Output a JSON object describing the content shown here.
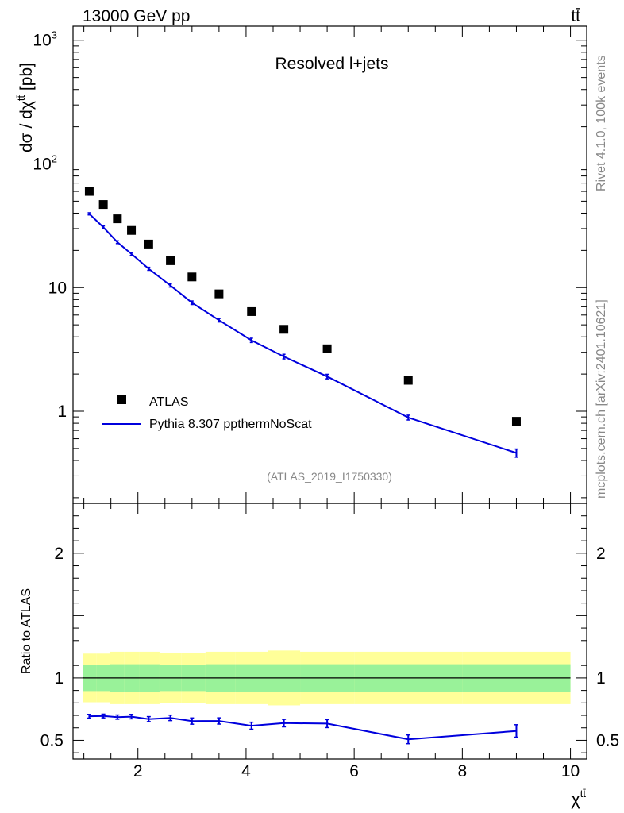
{
  "header": {
    "left": "13000 GeV pp",
    "right": "tt̄"
  },
  "side": {
    "rivet": "Rivet 4.1.0,  100k events",
    "mcplots": "mcplots.cern.ch [arXiv:2401.10621]"
  },
  "chart_data": [
    {
      "type": "scatter",
      "title": "Resolved l+jets",
      "ylabel": "dσ / dχ^tt̄ [pb]",
      "xlabel": "χ^tt̄",
      "yscale": "log",
      "ylim": [
        0.18,
        1300
      ],
      "xlim": [
        0.8,
        10.3
      ],
      "yticks": [
        {
          "v": 1,
          "label": "1"
        },
        {
          "v": 10,
          "label": "10"
        },
        {
          "v": 100,
          "label": "10^2"
        },
        {
          "v": 1000,
          "label": "10^3"
        }
      ],
      "analysis_tag": "(ATLAS_2019_I1750330)",
      "legend": {
        "placement": "lower-left",
        "entries": [
          "ATLAS",
          "Pythia 8.307 ppthermNoScat"
        ]
      },
      "x": [
        1.1,
        1.36,
        1.62,
        1.88,
        2.2,
        2.6,
        3.0,
        3.5,
        4.1,
        4.7,
        5.5,
        7.0,
        9.0
      ],
      "series": [
        {
          "name": "ATLAS",
          "style": "markers",
          "color": "#000000",
          "values": [
            60,
            47,
            36,
            29,
            22.5,
            16.5,
            12.2,
            8.9,
            6.4,
            4.6,
            3.2,
            1.78,
            0.83
          ]
        },
        {
          "name": "Pythia 8.307 ppthermNoScat",
          "style": "line",
          "color": "#0000dd",
          "values": [
            39.5,
            30.8,
            23.3,
            18.7,
            14.2,
            10.4,
            7.55,
            5.45,
            3.75,
            2.77,
            1.91,
            0.89,
            0.46
          ],
          "errors": [
            0.8,
            0.7,
            0.6,
            0.5,
            0.4,
            0.3,
            0.25,
            0.18,
            0.15,
            0.12,
            0.08,
            0.04,
            0.035
          ]
        }
      ]
    },
    {
      "type": "line",
      "ylabel": "Ratio to ATLAS",
      "xlabel": "χ^tt̄",
      "ylim": [
        0.35,
        2.4
      ],
      "xlim": [
        0.8,
        10.3
      ],
      "xticks": [
        2,
        4,
        6,
        8,
        10
      ],
      "yticks": [
        {
          "v": 0.5,
          "label": "0.5"
        },
        {
          "v": 1,
          "label": "1"
        },
        {
          "v": 2,
          "label": "2"
        }
      ],
      "reference": 1.0,
      "bins": [
        0.98,
        1.23,
        1.49,
        1.75,
        2.02,
        2.4,
        2.8,
        3.25,
        3.8,
        4.4,
        5.0,
        6.0,
        8.0,
        10.0
      ],
      "band_stat_halfwidth": [
        0.105,
        0.105,
        0.11,
        0.11,
        0.11,
        0.105,
        0.105,
        0.11,
        0.11,
        0.11,
        0.11,
        0.11,
        0.11
      ],
      "band_total_halfwidth": [
        0.195,
        0.195,
        0.21,
        0.21,
        0.21,
        0.2,
        0.2,
        0.21,
        0.21,
        0.22,
        0.21,
        0.21,
        0.21
      ],
      "x": [
        1.1,
        1.36,
        1.62,
        1.88,
        2.2,
        2.6,
        3.0,
        3.5,
        4.1,
        4.7,
        5.5,
        7.0,
        9.0
      ],
      "series": [
        {
          "name": "Pythia 8.307 ppthermNoScat / ATLAS",
          "color": "#0000dd",
          "values": [
            0.693,
            0.695,
            0.686,
            0.69,
            0.67,
            0.68,
            0.654,
            0.655,
            0.617,
            0.638,
            0.634,
            0.508,
            0.575
          ],
          "errors": [
            0.015,
            0.015,
            0.017,
            0.018,
            0.02,
            0.022,
            0.025,
            0.025,
            0.028,
            0.03,
            0.032,
            0.035,
            0.05
          ]
        }
      ]
    }
  ]
}
